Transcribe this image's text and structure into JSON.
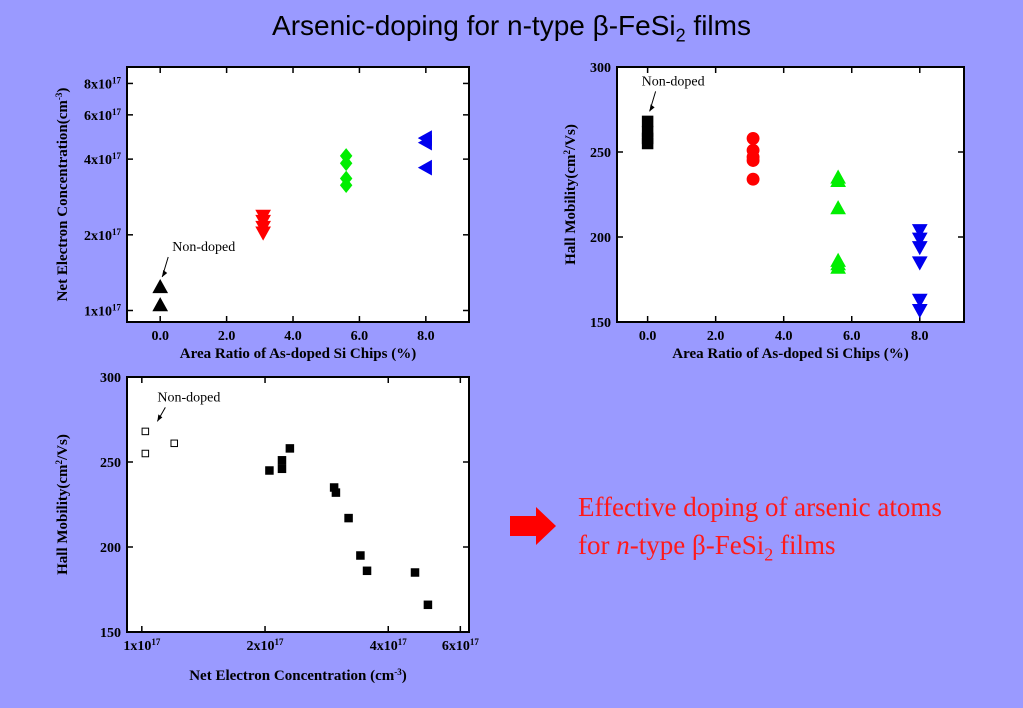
{
  "slide": {
    "title_prefix": "Arsenic-doping for n-type β-FeSi",
    "title_sub": "2",
    "title_suffix": " films",
    "conclusion": {
      "line1": "Effective doping of arsenic atoms",
      "line2_pre": "for ",
      "line2_em": "n",
      "line2_mid": "-type β-FeSi",
      "line2_sub": "2",
      "line2_post": " films"
    }
  },
  "chart_data": [
    {
      "type": "scatter",
      "xlabel": "Area Ratio of As-doped Si Chips (%)",
      "ylabel_pre": "Net Electron Concentration",
      "ylabel_unit": "(cm",
      "ylabel_sup": "-3",
      "ylabel_close": ")",
      "xlim": [
        -1,
        9.3
      ],
      "ylim": [
        9e+16,
        9.3e+17
      ],
      "yscale": "log",
      "xticks": [
        {
          "value": 0,
          "label": "0.0"
        },
        {
          "value": 2,
          "label": "2.0"
        },
        {
          "value": 4,
          "label": "4.0"
        },
        {
          "value": 6,
          "label": "6.0"
        },
        {
          "value": 8,
          "label": "8.0"
        }
      ],
      "yticks": [
        {
          "value": 1e+17,
          "base": "1x10",
          "exp": "17"
        },
        {
          "value": 2e+17,
          "base": "2x10",
          "exp": "17"
        },
        {
          "value": 4e+17,
          "base": "4x10",
          "exp": "17"
        },
        {
          "value": 6e+17,
          "base": "6x10",
          "exp": "17"
        },
        {
          "value": 8e+17,
          "base": "8x10",
          "exp": "17"
        }
      ],
      "series": [
        {
          "marker": "triangle-up",
          "color": "#000000",
          "x": 0.0,
          "y": [
            1.05e+17,
            1.24e+17
          ]
        },
        {
          "marker": "triangle-down",
          "color": "#ff0000",
          "x": 3.1,
          "y": [
            2.04e+17,
            2.15e+17,
            2.27e+17,
            2.38e+17
          ]
        },
        {
          "marker": "diamond",
          "color": "#00ee00",
          "x": 5.6,
          "y": [
            3.15e+17,
            3.35e+17,
            3.85e+17,
            4.12e+17
          ]
        },
        {
          "marker": "triangle-left",
          "color": "#0000ee",
          "x": 8.0,
          "y": [
            3.7e+17,
            4.65e+17,
            4.85e+17
          ]
        }
      ],
      "annotation": {
        "text": "Non-doped",
        "x": 0.0,
        "y": 1.24e+17
      }
    },
    {
      "type": "scatter",
      "xlabel": "Area Ratio of As-doped Si Chips (%)",
      "ylabel_pre": "Hall Mobility",
      "ylabel_unit": "(cm",
      "ylabel_sup": "2",
      "ylabel_close": "/Vs)",
      "xlim": [
        -0.9,
        9.3
      ],
      "ylim": [
        150,
        300
      ],
      "xticks": [
        {
          "value": 0,
          "label": "0.0"
        },
        {
          "value": 2,
          "label": "2.0"
        },
        {
          "value": 4,
          "label": "4.0"
        },
        {
          "value": 6,
          "label": "6.0"
        },
        {
          "value": 8,
          "label": "8.0"
        }
      ],
      "yticks": [
        {
          "value": 150,
          "label": "150"
        },
        {
          "value": 200,
          "label": "200"
        },
        {
          "value": 250,
          "label": "250"
        },
        {
          "value": 300,
          "label": "300"
        }
      ],
      "series": [
        {
          "marker": "square",
          "color": "#000000",
          "x": 0.0,
          "y": [
            255,
            258,
            262,
            268
          ]
        },
        {
          "marker": "circle",
          "color": "#ff0000",
          "x": 3.1,
          "y": [
            234,
            245,
            247,
            251,
            258
          ]
        },
        {
          "marker": "triangle-up",
          "color": "#00ee00",
          "x": 5.6,
          "y": [
            182,
            184,
            186,
            217,
            233,
            235
          ]
        },
        {
          "marker": "triangle-down",
          "color": "#0000ee",
          "x": 8.0,
          "y": [
            157,
            163,
            185,
            194,
            199,
            204
          ]
        }
      ],
      "annotation": {
        "text": "Non-doped",
        "x": 0.0,
        "y": 268
      }
    },
    {
      "type": "scatter",
      "xlabel_pre": "Net Electron Concentration ",
      "xlabel_unit": "(cm",
      "xlabel_sup": "-3",
      "xlabel_close": ")",
      "ylabel_pre": "Hall Mobility",
      "ylabel_unit": "(cm",
      "ylabel_sup": "2",
      "ylabel_close": "/Vs)",
      "xscale": "log",
      "xlim": [
        9.2e+16,
        6.3e+17
      ],
      "ylim": [
        150,
        300
      ],
      "xticks": [
        {
          "value": 1e+17,
          "base": "1x10",
          "exp": "17"
        },
        {
          "value": 2e+17,
          "base": "2x10",
          "exp": "17"
        },
        {
          "value": 4e+17,
          "base": "4x10",
          "exp": "17"
        },
        {
          "value": 6e+17,
          "base": "6x10",
          "exp": "17"
        }
      ],
      "yticks": [
        {
          "value": 150,
          "label": "150"
        },
        {
          "value": 200,
          "label": "200"
        },
        {
          "value": 250,
          "label": "250"
        },
        {
          "value": 300,
          "label": "300"
        }
      ],
      "series": [
        {
          "marker": "square-open",
          "color": "#000000",
          "x": [
            1.02e+17,
            1.02e+17,
            1.2e+17
          ],
          "y": [
            255,
            268,
            261
          ]
        },
        {
          "marker": "square",
          "color": "#000000",
          "x": [
            2.05e+17,
            2.2e+17,
            2.2e+17,
            2.3e+17,
            2.95e+17,
            2.98e+17,
            3.2e+17,
            3.42e+17,
            3.55e+17,
            4.65e+17,
            5e+17
          ],
          "y": [
            245,
            246,
            251,
            258,
            235,
            232,
            217,
            195,
            186,
            185,
            166
          ]
        }
      ],
      "annotation": {
        "text": "Non-doped",
        "x": 1.02e+17,
        "y": 268
      }
    }
  ]
}
